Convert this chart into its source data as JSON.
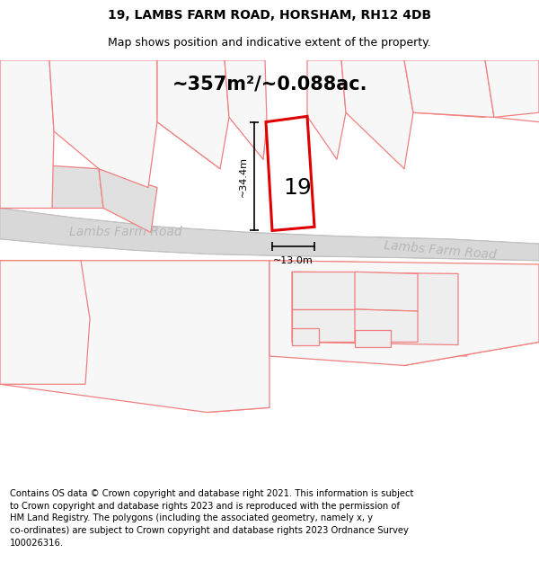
{
  "title_line1": "19, LAMBS FARM ROAD, HORSHAM, RH12 4DB",
  "title_line2": "Map shows position and indicative extent of the property.",
  "area_text": "~357m²/~0.088ac.",
  "height_label": "~34.4m",
  "width_label": "~13.0m",
  "plot_number": "19",
  "road_name_left": "Lambs Farm Road",
  "road_name_right": "Lambs Farm Road",
  "footer_text": "Contains OS data © Crown copyright and database right 2021. This information is subject\nto Crown copyright and database rights 2023 and is reproduced with the permission of\nHM Land Registry. The polygons (including the associated geometry, namely x, y\nco-ordinates) are subject to Crown copyright and database rights 2023 Ordnance Survey\n100026316.",
  "bg_color": "#ffffff",
  "map_bg": "#f7f7f7",
  "road_fill": "#d8d8d8",
  "road_edge": "#bbbbbb",
  "plot_edge_color": "#e00000",
  "plot_fill_color": "#ffffff",
  "neighbor_edge_color": "#f08080",
  "neighbor_fill_color": "#f7f7f7",
  "road_label_color": "#b8b8b8",
  "gray_fill": "#e0e0e0",
  "title_fontsize": 10,
  "subtitle_fontsize": 9,
  "area_fontsize": 15,
  "plot_num_fontsize": 18,
  "footer_fontsize": 7.2,
  "dim_fontsize": 8,
  "road_label_fontsize": 10
}
